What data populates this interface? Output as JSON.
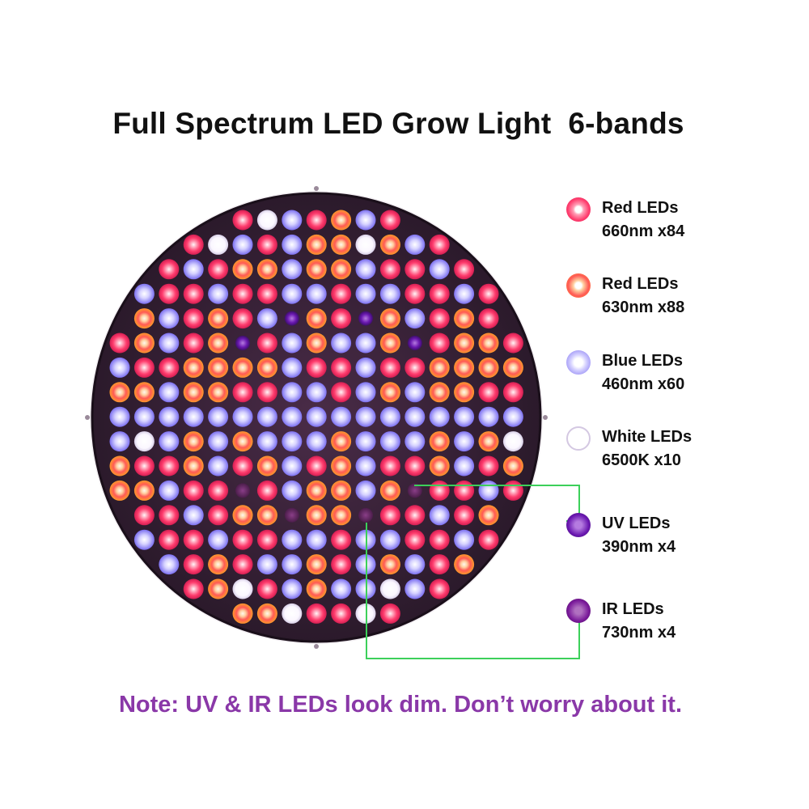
{
  "title": "Full Spectrum LED Grow Light  6-bands",
  "note": "Note: UV & IR LEDs look dim. Don’t worry about it.",
  "legend": [
    {
      "name": "Red LEDs",
      "spec": "660nm x84",
      "color": "#ff3d6e",
      "icon": "red-660-led-icon"
    },
    {
      "name": "Red LEDs",
      "spec": "630nm x88",
      "color": "#ff8a3a",
      "icon": "red-630-led-icon"
    },
    {
      "name": "Blue LEDs",
      "spec": "460nm x60",
      "color": "#8f86ff",
      "icon": "blue-led-icon"
    },
    {
      "name": "White LEDs",
      "spec": "6500K x10",
      "color": "#ffffff",
      "icon": "white-led-icon"
    },
    {
      "name": "UV LEDs",
      "spec": "390nm x4",
      "color": "#6a18b0",
      "icon": "uv-led-icon"
    },
    {
      "name": "IR LEDs",
      "spec": "730nm x4",
      "color": "#7a1a9a",
      "icon": "ir-led-icon"
    }
  ],
  "callout_color": "#3cd05a",
  "panel_color": "#3a2238"
}
